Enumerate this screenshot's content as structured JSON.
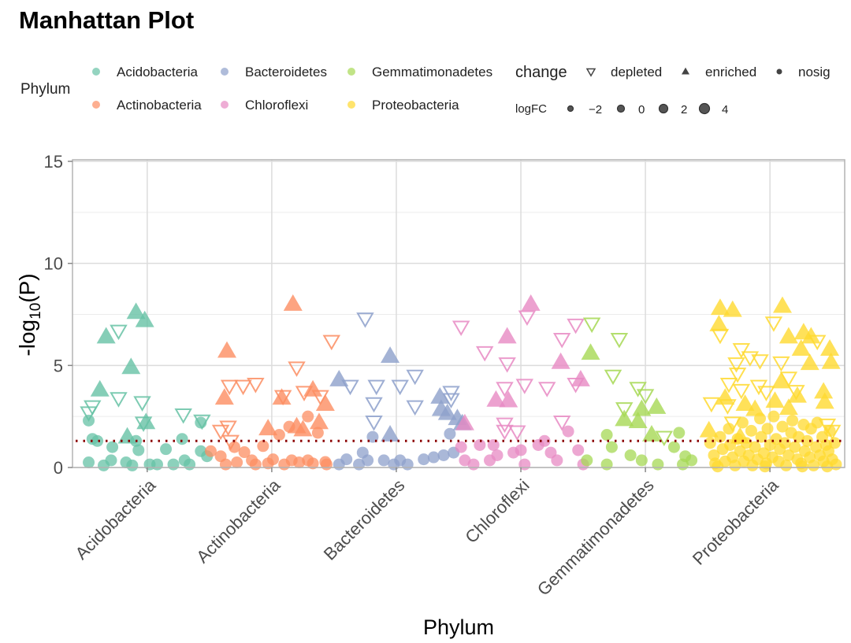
{
  "chart_data": {
    "type": "scatter",
    "title": "Manhattan Plot",
    "xlabel": "Phylum",
    "ylabel_main": "-log",
    "ylabel_sub": "10",
    "ylabel_tail": "(P)",
    "ylim": [
      0,
      15
    ],
    "xlim": [
      0.4,
      6.6
    ],
    "yticks": [
      0,
      5,
      10,
      15
    ],
    "grid": true,
    "threshold": 1.3,
    "threshold_color": "#8B0000",
    "categories": [
      "Acidobacteria",
      "Actinobacteria",
      "Bacteroidetes",
      "Chloroflexi",
      "Gemmatimonadetes",
      "Proteobacteria"
    ],
    "legend": {
      "placement": "top",
      "phylum_title": "Phylum",
      "phylum_items": [
        "Acidobacteria",
        "Bacteroidetes",
        "Gemmatimonadetes",
        "Actinobacteria",
        "Chloroflexi",
        "Proteobacteria"
      ],
      "change_title": "change",
      "change_items": [
        "depleted",
        "enriched",
        "nosig"
      ],
      "logfc_title": "logFC",
      "logfc_items": [
        "−2",
        "0",
        "2",
        "4"
      ]
    },
    "series": [
      {
        "name": "Acidobacteria",
        "color": "#66C2A5",
        "enriched": [
          [
            0.91,
            7.6
          ],
          [
            0.98,
            7.2
          ],
          [
            0.67,
            6.4
          ],
          [
            0.87,
            4.9
          ],
          [
            0.62,
            3.8
          ],
          [
            0.84,
            1.5
          ],
          [
            0.99,
            2.2
          ]
        ],
        "depleted": [
          [
            0.77,
            6.7
          ],
          [
            0.77,
            3.4
          ],
          [
            0.56,
            3.0
          ],
          [
            0.53,
            2.7
          ],
          [
            0.96,
            3.2
          ],
          [
            0.97,
            2.2
          ],
          [
            1.29,
            2.6
          ],
          [
            1.44,
            2.3
          ]
        ],
        "nosig": [
          [
            0.53,
            2.3
          ],
          [
            0.56,
            1.4
          ],
          [
            0.6,
            1.3
          ],
          [
            0.72,
            1.0
          ],
          [
            0.91,
            1.3
          ],
          [
            0.93,
            0.85
          ],
          [
            0.71,
            0.35
          ],
          [
            0.83,
            0.25
          ],
          [
            0.53,
            0.25
          ],
          [
            1.08,
            0.15
          ],
          [
            1.15,
            0.9
          ],
          [
            1.28,
            1.4
          ],
          [
            1.3,
            0.35
          ],
          [
            1.43,
            2.2
          ],
          [
            1.43,
            0.8
          ],
          [
            1.48,
            0.55
          ],
          [
            1.21,
            0.15
          ],
          [
            1.02,
            0.15
          ],
          [
            1.34,
            0.15
          ],
          [
            0.65,
            0.1
          ],
          [
            0.88,
            0.1
          ]
        ]
      },
      {
        "name": "Actinobacteria",
        "color": "#FC8D62",
        "enriched": [
          [
            2.17,
            8.0
          ],
          [
            1.64,
            5.7
          ],
          [
            1.62,
            3.4
          ],
          [
            2.08,
            3.4
          ],
          [
            2.2,
            2.0
          ],
          [
            2.33,
            3.8
          ],
          [
            2.38,
            2.2
          ],
          [
            2.43,
            3.1
          ],
          [
            1.97,
            1.9
          ],
          [
            2.25,
            1.85
          ]
        ],
        "depleted": [
          [
            2.2,
            4.9
          ],
          [
            1.66,
            4.0
          ],
          [
            1.77,
            4.0
          ],
          [
            1.87,
            4.1
          ],
          [
            2.48,
            6.2
          ],
          [
            2.09,
            3.5
          ],
          [
            2.26,
            3.7
          ],
          [
            2.39,
            3.5
          ],
          [
            1.59,
            1.8
          ],
          [
            1.65,
            2.0
          ],
          [
            1.67,
            1.3
          ]
        ],
        "nosig": [
          [
            1.51,
            0.8
          ],
          [
            1.59,
            0.55
          ],
          [
            1.7,
            1.0
          ],
          [
            1.78,
            0.75
          ],
          [
            1.84,
            0.35
          ],
          [
            1.93,
            1.05
          ],
          [
            2.01,
            0.4
          ],
          [
            2.06,
            1.6
          ],
          [
            2.14,
            2.0
          ],
          [
            2.29,
            2.5
          ],
          [
            2.29,
            0.35
          ],
          [
            2.37,
            1.7
          ],
          [
            2.43,
            0.27
          ],
          [
            2.22,
            0.25
          ],
          [
            1.72,
            0.25
          ],
          [
            1.87,
            0.15
          ],
          [
            2.1,
            0.15
          ],
          [
            2.44,
            0.15
          ],
          [
            1.63,
            0.15
          ],
          [
            1.97,
            0.2
          ],
          [
            2.16,
            0.35
          ],
          [
            2.33,
            0.2
          ]
        ]
      },
      {
        "name": "Bacteroidetes",
        "color": "#8DA0CB",
        "enriched": [
          [
            2.95,
            5.45
          ],
          [
            2.54,
            4.3
          ],
          [
            2.95,
            1.6
          ],
          [
            3.35,
            3.45
          ],
          [
            3.36,
            2.85
          ],
          [
            3.41,
            2.65
          ],
          [
            3.49,
            2.4
          ],
          [
            3.53,
            2.15
          ]
        ],
        "depleted": [
          [
            2.75,
            7.3
          ],
          [
            2.63,
            4.0
          ],
          [
            2.84,
            4.0
          ],
          [
            3.03,
            4.0
          ],
          [
            3.15,
            4.5
          ],
          [
            2.82,
            3.15
          ],
          [
            2.82,
            2.25
          ],
          [
            3.15,
            3.0
          ],
          [
            3.44,
            3.7
          ],
          [
            3.44,
            3.35
          ]
        ],
        "nosig": [
          [
            2.81,
            1.5
          ],
          [
            2.73,
            0.73
          ],
          [
            2.6,
            0.4
          ],
          [
            2.54,
            0.15
          ],
          [
            2.77,
            0.35
          ],
          [
            2.9,
            0.35
          ],
          [
            3.03,
            0.35
          ],
          [
            3.09,
            0.15
          ],
          [
            3.22,
            0.4
          ],
          [
            3.3,
            0.5
          ],
          [
            3.38,
            0.6
          ],
          [
            3.46,
            0.73
          ],
          [
            3.43,
            1.65
          ],
          [
            2.7,
            0.15
          ],
          [
            2.98,
            0.15
          ]
        ]
      },
      {
        "name": "Chloroflexi",
        "color": "#E78AC3",
        "enriched": [
          [
            4.08,
            8.0
          ],
          [
            3.89,
            6.4
          ],
          [
            3.8,
            3.3
          ],
          [
            3.9,
            3.27
          ],
          [
            4.32,
            5.15
          ],
          [
            4.48,
            4.3
          ],
          [
            3.55,
            2.15
          ]
        ],
        "depleted": [
          [
            3.52,
            6.9
          ],
          [
            3.71,
            5.65
          ],
          [
            3.89,
            5.1
          ],
          [
            4.05,
            7.4
          ],
          [
            4.03,
            4.05
          ],
          [
            4.21,
            3.9
          ],
          [
            4.33,
            6.3
          ],
          [
            4.44,
            7.0
          ],
          [
            3.87,
            3.9
          ],
          [
            3.87,
            2.15
          ],
          [
            3.87,
            1.8
          ],
          [
            3.97,
            1.77
          ],
          [
            4.33,
            2.25
          ],
          [
            4.44,
            4.1
          ]
        ],
        "nosig": [
          [
            3.52,
            1.0
          ],
          [
            3.67,
            1.1
          ],
          [
            3.78,
            1.1
          ],
          [
            3.81,
            0.6
          ],
          [
            3.94,
            0.73
          ],
          [
            4.0,
            0.85
          ],
          [
            4.14,
            1.1
          ],
          [
            4.19,
            1.3
          ],
          [
            4.24,
            0.73
          ],
          [
            4.38,
            1.77
          ],
          [
            4.46,
            0.85
          ],
          [
            3.62,
            0.15
          ],
          [
            3.75,
            0.35
          ],
          [
            4.03,
            0.15
          ],
          [
            4.29,
            0.35
          ],
          [
            4.5,
            0.15
          ],
          [
            3.55,
            0.35
          ]
        ]
      },
      {
        "name": "Gemmatimonadetes",
        "color": "#A6D854",
        "enriched": [
          [
            4.56,
            5.6
          ],
          [
            4.97,
            2.85
          ],
          [
            5.09,
            2.95
          ],
          [
            4.83,
            2.35
          ],
          [
            5.05,
            1.6
          ],
          [
            4.94,
            2.25
          ]
        ],
        "depleted": [
          [
            4.57,
            7.05
          ],
          [
            4.79,
            6.3
          ],
          [
            4.74,
            4.5
          ],
          [
            4.94,
            3.9
          ],
          [
            5.0,
            3.55
          ],
          [
            4.83,
            2.9
          ],
          [
            5.15,
            1.5
          ]
        ],
        "nosig": [
          [
            4.69,
            1.6
          ],
          [
            4.73,
            1.0
          ],
          [
            4.69,
            0.15
          ],
          [
            4.88,
            0.6
          ],
          [
            4.97,
            0.35
          ],
          [
            5.27,
            1.7
          ],
          [
            5.23,
            1.0
          ],
          [
            5.32,
            0.55
          ],
          [
            5.37,
            0.35
          ],
          [
            4.53,
            0.35
          ],
          [
            5.1,
            0.15
          ],
          [
            5.3,
            0.15
          ]
        ]
      },
      {
        "name": "Proteobacteria",
        "color": "#FFD92F",
        "enriched": [
          [
            5.6,
            7.8
          ],
          [
            5.7,
            7.7
          ],
          [
            5.59,
            7.0
          ],
          [
            6.1,
            7.9
          ],
          [
            6.15,
            6.4
          ],
          [
            6.27,
            6.6
          ],
          [
            6.33,
            6.4
          ],
          [
            6.48,
            5.8
          ],
          [
            6.49,
            5.15
          ],
          [
            6.25,
            5.8
          ],
          [
            6.32,
            5.1
          ],
          [
            6.09,
            4.2
          ],
          [
            5.64,
            3.4
          ],
          [
            5.8,
            3.1
          ],
          [
            6.04,
            3.25
          ],
          [
            6.22,
            3.5
          ],
          [
            6.43,
            3.7
          ],
          [
            6.44,
            3.2
          ],
          [
            6.15,
            2.9
          ],
          [
            5.88,
            2.85
          ],
          [
            5.51,
            1.8
          ],
          [
            5.76,
            1.5
          ]
        ],
        "depleted": [
          [
            6.03,
            7.1
          ],
          [
            5.6,
            6.5
          ],
          [
            5.77,
            5.8
          ],
          [
            5.84,
            5.4
          ],
          [
            5.92,
            5.25
          ],
          [
            5.73,
            5.1
          ],
          [
            5.74,
            4.6
          ],
          [
            6.09,
            5.15
          ],
          [
            6.38,
            6.2
          ],
          [
            5.67,
            4.1
          ],
          [
            5.77,
            3.8
          ],
          [
            5.91,
            4.0
          ],
          [
            5.97,
            3.7
          ],
          [
            6.15,
            4.4
          ],
          [
            6.21,
            3.75
          ],
          [
            5.53,
            3.15
          ],
          [
            5.66,
            3.05
          ],
          [
            5.7,
            2.2
          ],
          [
            6.46,
            2.1
          ],
          [
            6.5,
            1.8
          ]
        ],
        "nosig": [
          [
            5.52,
            1.2
          ],
          [
            5.55,
            0.6
          ],
          [
            5.56,
            0.2
          ],
          [
            5.6,
            1.5
          ],
          [
            5.62,
            0.9
          ],
          [
            5.64,
            0.3
          ],
          [
            5.67,
            1.9
          ],
          [
            5.68,
            1.1
          ],
          [
            5.7,
            0.5
          ],
          [
            5.72,
            0.1
          ],
          [
            5.74,
            1.4
          ],
          [
            5.76,
            0.8
          ],
          [
            5.78,
            2.2
          ],
          [
            5.79,
            0.3
          ],
          [
            5.81,
            1.2
          ],
          [
            5.83,
            0.6
          ],
          [
            5.85,
            1.8
          ],
          [
            5.86,
            0.1
          ],
          [
            5.88,
            1.0
          ],
          [
            5.9,
            0.4
          ],
          [
            5.92,
            2.4
          ],
          [
            5.93,
            1.5
          ],
          [
            5.95,
            0.7
          ],
          [
            5.97,
            0.2
          ],
          [
            5.98,
            1.9
          ],
          [
            6.0,
            1.1
          ],
          [
            6.02,
            0.5
          ],
          [
            6.03,
            2.5
          ],
          [
            6.05,
            1.4
          ],
          [
            6.07,
            0.3
          ],
          [
            6.08,
            0.9
          ],
          [
            6.1,
            2.0
          ],
          [
            6.12,
            1.2
          ],
          [
            6.13,
            0.1
          ],
          [
            6.15,
            0.6
          ],
          [
            6.17,
            1.7
          ],
          [
            6.18,
            2.3
          ],
          [
            6.2,
            1.0
          ],
          [
            6.22,
            0.4
          ],
          [
            6.23,
            1.5
          ],
          [
            6.25,
            0.2
          ],
          [
            6.27,
            2.1
          ],
          [
            6.28,
            0.8
          ],
          [
            6.3,
            1.3
          ],
          [
            6.32,
            0.5
          ],
          [
            6.33,
            1.9
          ],
          [
            6.35,
            0.1
          ],
          [
            6.37,
            1.0
          ],
          [
            6.38,
            2.2
          ],
          [
            6.4,
            0.6
          ],
          [
            6.42,
            1.5
          ],
          [
            6.43,
            0.3
          ],
          [
            6.45,
            1.1
          ],
          [
            6.47,
            0.8
          ],
          [
            6.48,
            1.8
          ],
          [
            6.5,
            0.4
          ],
          [
            6.52,
            1.2
          ],
          [
            6.53,
            0.15
          ],
          [
            5.58,
            0.05
          ],
          [
            5.96,
            0.05
          ],
          [
            6.26,
            0.05
          ],
          [
            6.46,
            0.05
          ]
        ]
      }
    ]
  }
}
